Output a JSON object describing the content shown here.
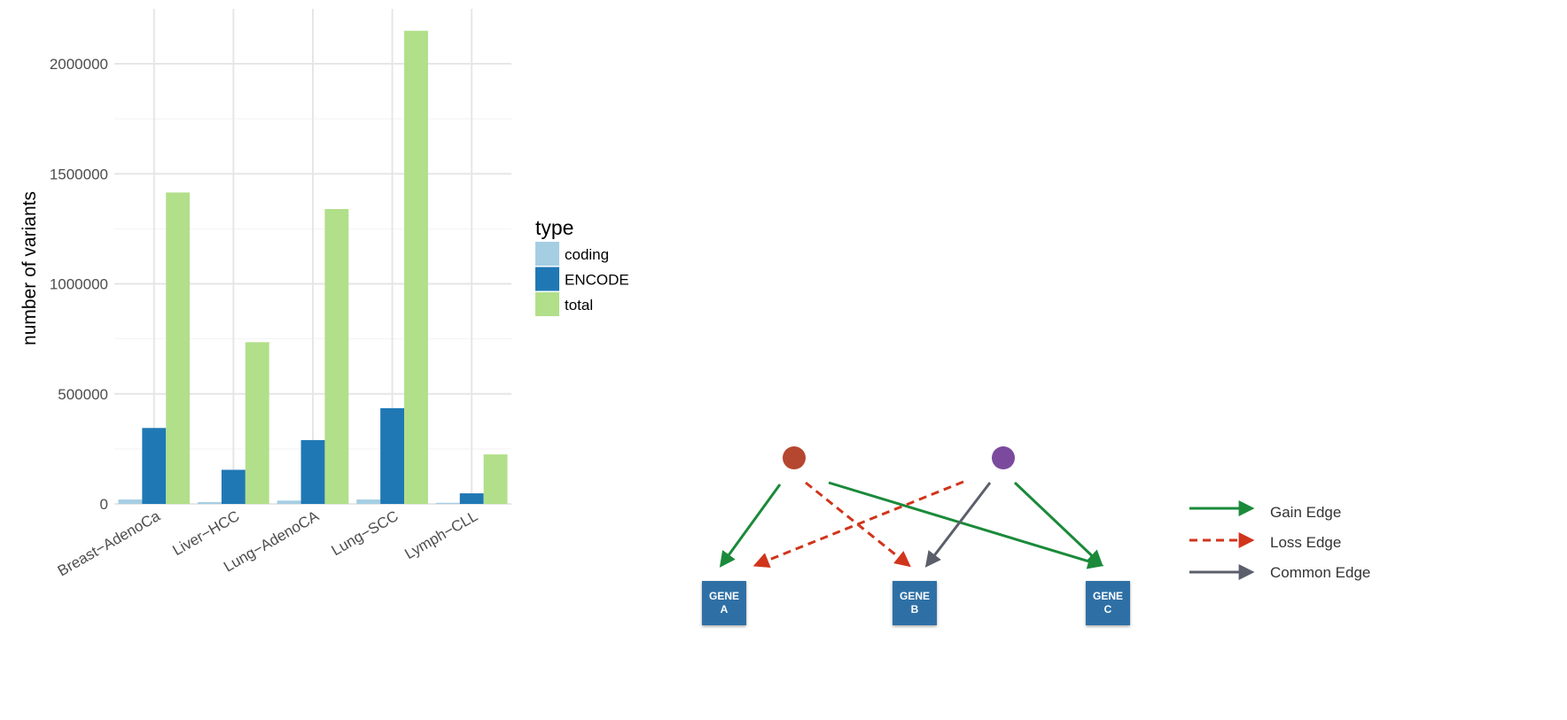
{
  "chart_data": {
    "type": "bar",
    "title": "",
    "xlabel": "",
    "ylabel": "number of variants",
    "ylim": [
      0,
      2200000
    ],
    "yticks": [
      0,
      500000,
      1000000,
      1500000,
      2000000
    ],
    "ytick_labels": [
      "0",
      "500000",
      "1000000",
      "1500000",
      "2000000"
    ],
    "categories": [
      "Breast−AdenoCa",
      "Liver−HCC",
      "Lung−AdenoCA",
      "Lung−SCC",
      "Lymph−CLL"
    ],
    "legend_title": "type",
    "legend_position": "right",
    "grid": true,
    "series": [
      {
        "name": "coding",
        "color": "#a6cee3",
        "values": [
          20000,
          8000,
          15000,
          20000,
          5000
        ]
      },
      {
        "name": "ENCODE",
        "color": "#1f78b4",
        "values": [
          345000,
          155000,
          290000,
          435000,
          48000
        ]
      },
      {
        "name": "total",
        "color": "#b2df8a",
        "values": [
          1415000,
          735000,
          1340000,
          2150000,
          225000
        ]
      }
    ]
  },
  "network": {
    "regulators": [
      {
        "id": "reg-red",
        "color": "#b5462f"
      },
      {
        "id": "reg-purple",
        "color": "#7b4a9e"
      }
    ],
    "genes": [
      {
        "id": "gene-a",
        "line1": "GENE",
        "line2": "A"
      },
      {
        "id": "gene-b",
        "line1": "GENE",
        "line2": "B"
      },
      {
        "id": "gene-c",
        "line1": "GENE",
        "line2": "C"
      }
    ],
    "colors": {
      "gene_box": "#2f6fa6",
      "gain": "#1a8a3a",
      "loss": "#d0351c",
      "common": "#5b5f6b"
    },
    "edges": [
      {
        "from": "reg-red",
        "to": "gene-a",
        "kind": "gain"
      },
      {
        "from": "reg-red",
        "to": "gene-b",
        "kind": "loss"
      },
      {
        "from": "reg-red",
        "to": "gene-c",
        "kind": "gain"
      },
      {
        "from": "reg-purple",
        "to": "gene-a",
        "kind": "loss"
      },
      {
        "from": "reg-purple",
        "to": "gene-b",
        "kind": "common"
      },
      {
        "from": "reg-purple",
        "to": "gene-c",
        "kind": "gain"
      }
    ],
    "legend": [
      {
        "kind": "gain",
        "label": "Gain Edge"
      },
      {
        "kind": "loss",
        "label": "Loss Edge"
      },
      {
        "kind": "common",
        "label": "Common Edge"
      }
    ]
  }
}
